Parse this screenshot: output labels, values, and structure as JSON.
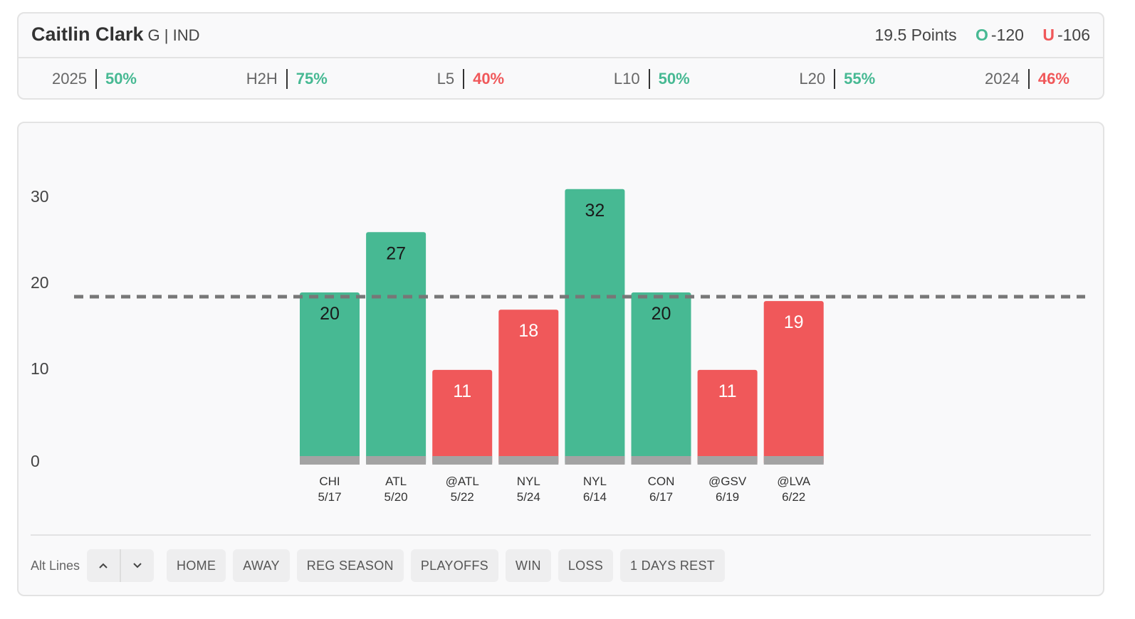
{
  "player": {
    "name": "Caitlin Clark",
    "meta": "G | IND"
  },
  "line": {
    "text": "19.5 Points",
    "over_letter": "O",
    "over_odds": "-120",
    "under_letter": "U",
    "under_odds": "-106"
  },
  "stats": [
    {
      "label": "2025",
      "value": "50%",
      "status": "hit"
    },
    {
      "label": "H2H",
      "value": "75%",
      "status": "hit"
    },
    {
      "label": "L5",
      "value": "40%",
      "status": "miss"
    },
    {
      "label": "L10",
      "value": "50%",
      "status": "hit"
    },
    {
      "label": "L20",
      "value": "55%",
      "status": "hit"
    },
    {
      "label": "2024",
      "value": "46%",
      "status": "miss"
    }
  ],
  "colors": {
    "hit": "#47b993",
    "miss": "#f0585a",
    "base": "#a3a3a3",
    "line": "#777777"
  },
  "chart_data": {
    "type": "bar",
    "ylim": [
      0,
      30
    ],
    "yticks": [
      0,
      10,
      20,
      30
    ],
    "threshold": 19.5,
    "categories": [
      "CHI",
      "ATL",
      "@ATL",
      "NYL",
      "NYL",
      "CON",
      "@GSV",
      "@LVA"
    ],
    "dates": [
      "5/17",
      "5/20",
      "5/22",
      "5/24",
      "6/14",
      "6/17",
      "6/19",
      "6/22"
    ],
    "values": [
      20,
      27,
      11,
      18,
      32,
      20,
      11,
      19
    ],
    "result": [
      "hit",
      "hit",
      "miss",
      "miss",
      "hit",
      "hit",
      "miss",
      "miss"
    ]
  },
  "controls": {
    "alt_lines_label": "Alt Lines",
    "up_icon": "chevron-up-icon",
    "down_icon": "chevron-down-icon",
    "filters": [
      "HOME",
      "AWAY",
      "REG SEASON",
      "PLAYOFFS",
      "WIN",
      "LOSS",
      "1 DAYS REST"
    ]
  }
}
